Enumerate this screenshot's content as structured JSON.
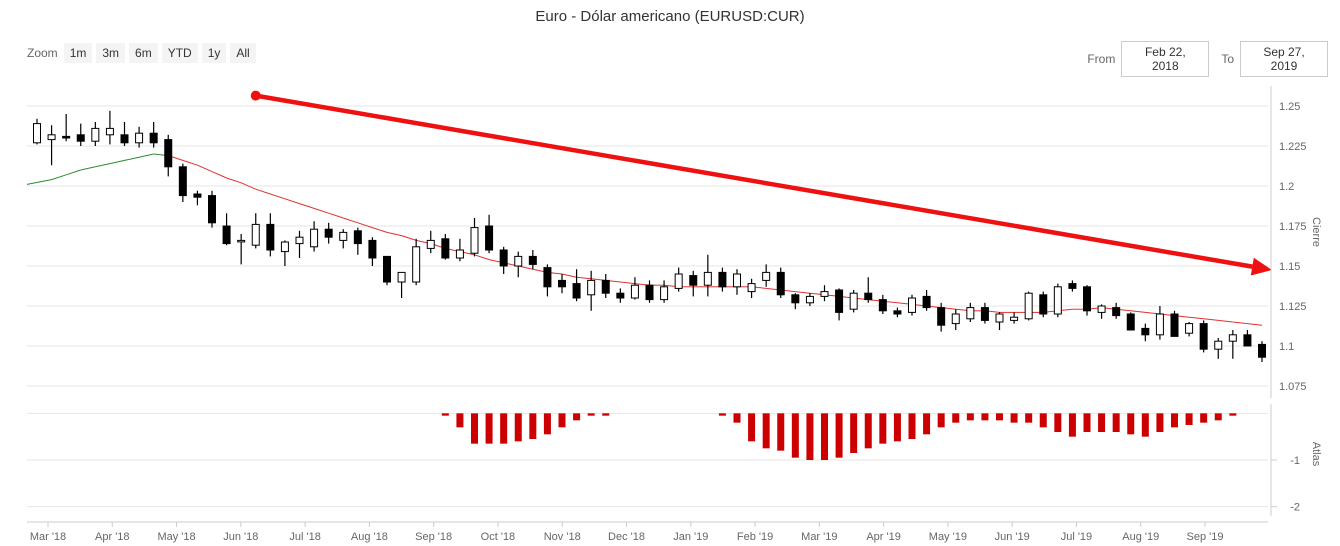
{
  "title": "Euro - Dólar americano (EURUSD:CUR)",
  "zoom": {
    "label": "Zoom",
    "buttons": [
      "1m",
      "3m",
      "6m",
      "YTD",
      "1y",
      "All"
    ]
  },
  "range": {
    "from_label": "From",
    "from_value": "Feb 22, 2018",
    "to_label": "To",
    "to_value": "Sep 27, 2019"
  },
  "colors": {
    "up_candle": "#ffffff",
    "down_candle": "#000000",
    "ma_above": "#2e8b2e",
    "ma_below": "#e03030",
    "histogram": "#cc0000",
    "trend_arrow": "#ee1111",
    "grid": "#e6e6e6"
  },
  "chart_data": {
    "type": "candlestick",
    "x_axis": {
      "ticks": [
        "Mar '18",
        "Apr '18",
        "May '18",
        "Jun '18",
        "Jul '18",
        "Aug '18",
        "Sep '18",
        "Oct '18",
        "Nov '18",
        "Dec '18",
        "Jan '19",
        "Feb '19",
        "Mar '19",
        "Apr '19",
        "May '19",
        "Jun '19",
        "Jul '19",
        "Aug '19",
        "Sep '19"
      ]
    },
    "price_panel": {
      "ylabel": "Cierre",
      "yticks": [
        "1.075",
        "1.1",
        "1.125",
        "1.15",
        "1.175",
        "1.2",
        "1.225",
        "1.25"
      ],
      "ylim": [
        1.0675,
        1.2625
      ],
      "grid": true,
      "candles": [
        {
          "o": 1.227,
          "h": 1.242,
          "l": 1.226,
          "c": 1.239
        },
        {
          "o": 1.229,
          "h": 1.238,
          "l": 1.213,
          "c": 1.232
        },
        {
          "o": 1.231,
          "h": 1.245,
          "l": 1.228,
          "c": 1.23
        },
        {
          "o": 1.232,
          "h": 1.239,
          "l": 1.225,
          "c": 1.228
        },
        {
          "o": 1.228,
          "h": 1.24,
          "l": 1.225,
          "c": 1.236
        },
        {
          "o": 1.232,
          "h": 1.247,
          "l": 1.226,
          "c": 1.236
        },
        {
          "o": 1.232,
          "h": 1.24,
          "l": 1.225,
          "c": 1.227
        },
        {
          "o": 1.227,
          "h": 1.237,
          "l": 1.224,
          "c": 1.233
        },
        {
          "o": 1.233,
          "h": 1.24,
          "l": 1.224,
          "c": 1.227
        },
        {
          "o": 1.229,
          "h": 1.232,
          "l": 1.206,
          "c": 1.212
        },
        {
          "o": 1.212,
          "h": 1.214,
          "l": 1.19,
          "c": 1.194
        },
        {
          "o": 1.195,
          "h": 1.197,
          "l": 1.188,
          "c": 1.193
        },
        {
          "o": 1.194,
          "h": 1.197,
          "l": 1.174,
          "c": 1.177
        },
        {
          "o": 1.175,
          "h": 1.183,
          "l": 1.163,
          "c": 1.164
        },
        {
          "o": 1.166,
          "h": 1.17,
          "l": 1.151,
          "c": 1.166
        },
        {
          "o": 1.163,
          "h": 1.183,
          "l": 1.161,
          "c": 1.176
        },
        {
          "o": 1.176,
          "h": 1.183,
          "l": 1.156,
          "c": 1.16
        },
        {
          "o": 1.159,
          "h": 1.166,
          "l": 1.15,
          "c": 1.165
        },
        {
          "o": 1.164,
          "h": 1.172,
          "l": 1.155,
          "c": 1.168
        },
        {
          "o": 1.162,
          "h": 1.178,
          "l": 1.159,
          "c": 1.173
        },
        {
          "o": 1.173,
          "h": 1.177,
          "l": 1.164,
          "c": 1.168
        },
        {
          "o": 1.166,
          "h": 1.173,
          "l": 1.161,
          "c": 1.171
        },
        {
          "o": 1.172,
          "h": 1.174,
          "l": 1.157,
          "c": 1.164
        },
        {
          "o": 1.166,
          "h": 1.168,
          "l": 1.15,
          "c": 1.155
        },
        {
          "o": 1.156,
          "h": 1.156,
          "l": 1.138,
          "c": 1.14
        },
        {
          "o": 1.14,
          "h": 1.146,
          "l": 1.13,
          "c": 1.146
        },
        {
          "o": 1.14,
          "h": 1.167,
          "l": 1.138,
          "c": 1.162
        },
        {
          "o": 1.161,
          "h": 1.172,
          "l": 1.158,
          "c": 1.166
        },
        {
          "o": 1.167,
          "h": 1.17,
          "l": 1.154,
          "c": 1.155
        },
        {
          "o": 1.155,
          "h": 1.167,
          "l": 1.153,
          "c": 1.16
        },
        {
          "o": 1.158,
          "h": 1.18,
          "l": 1.156,
          "c": 1.174
        },
        {
          "o": 1.175,
          "h": 1.182,
          "l": 1.158,
          "c": 1.16
        },
        {
          "o": 1.16,
          "h": 1.162,
          "l": 1.145,
          "c": 1.15
        },
        {
          "o": 1.15,
          "h": 1.159,
          "l": 1.143,
          "c": 1.156
        },
        {
          "o": 1.156,
          "h": 1.16,
          "l": 1.148,
          "c": 1.151
        },
        {
          "o": 1.149,
          "h": 1.151,
          "l": 1.131,
          "c": 1.137
        },
        {
          "o": 1.141,
          "h": 1.145,
          "l": 1.133,
          "c": 1.137
        },
        {
          "o": 1.139,
          "h": 1.148,
          "l": 1.128,
          "c": 1.13
        },
        {
          "o": 1.132,
          "h": 1.147,
          "l": 1.122,
          "c": 1.141
        },
        {
          "o": 1.141,
          "h": 1.145,
          "l": 1.13,
          "c": 1.133
        },
        {
          "o": 1.133,
          "h": 1.136,
          "l": 1.127,
          "c": 1.13
        },
        {
          "o": 1.13,
          "h": 1.143,
          "l": 1.129,
          "c": 1.138
        },
        {
          "o": 1.138,
          "h": 1.141,
          "l": 1.127,
          "c": 1.129
        },
        {
          "o": 1.129,
          "h": 1.141,
          "l": 1.127,
          "c": 1.137
        },
        {
          "o": 1.136,
          "h": 1.149,
          "l": 1.134,
          "c": 1.145
        },
        {
          "o": 1.144,
          "h": 1.147,
          "l": 1.131,
          "c": 1.138
        },
        {
          "o": 1.138,
          "h": 1.157,
          "l": 1.131,
          "c": 1.146
        },
        {
          "o": 1.146,
          "h": 1.149,
          "l": 1.134,
          "c": 1.137
        },
        {
          "o": 1.137,
          "h": 1.148,
          "l": 1.132,
          "c": 1.145
        },
        {
          "o": 1.134,
          "h": 1.142,
          "l": 1.13,
          "c": 1.139
        },
        {
          "o": 1.141,
          "h": 1.151,
          "l": 1.137,
          "c": 1.146
        },
        {
          "o": 1.146,
          "h": 1.149,
          "l": 1.13,
          "c": 1.132
        },
        {
          "o": 1.132,
          "h": 1.133,
          "l": 1.123,
          "c": 1.127
        },
        {
          "o": 1.127,
          "h": 1.133,
          "l": 1.125,
          "c": 1.131
        },
        {
          "o": 1.131,
          "h": 1.138,
          "l": 1.128,
          "c": 1.134
        },
        {
          "o": 1.135,
          "h": 1.136,
          "l": 1.116,
          "c": 1.121
        },
        {
          "o": 1.123,
          "h": 1.135,
          "l": 1.121,
          "c": 1.133
        },
        {
          "o": 1.133,
          "h": 1.143,
          "l": 1.127,
          "c": 1.129
        },
        {
          "o": 1.129,
          "h": 1.132,
          "l": 1.12,
          "c": 1.122
        },
        {
          "o": 1.122,
          "h": 1.124,
          "l": 1.118,
          "c": 1.12
        },
        {
          "o": 1.121,
          "h": 1.132,
          "l": 1.119,
          "c": 1.13
        },
        {
          "o": 1.131,
          "h": 1.135,
          "l": 1.122,
          "c": 1.124
        },
        {
          "o": 1.124,
          "h": 1.127,
          "l": 1.109,
          "c": 1.113
        },
        {
          "o": 1.114,
          "h": 1.123,
          "l": 1.11,
          "c": 1.12
        },
        {
          "o": 1.117,
          "h": 1.127,
          "l": 1.115,
          "c": 1.124
        },
        {
          "o": 1.124,
          "h": 1.127,
          "l": 1.114,
          "c": 1.116
        },
        {
          "o": 1.115,
          "h": 1.121,
          "l": 1.11,
          "c": 1.12
        },
        {
          "o": 1.116,
          "h": 1.121,
          "l": 1.114,
          "c": 1.118
        },
        {
          "o": 1.117,
          "h": 1.134,
          "l": 1.116,
          "c": 1.133
        },
        {
          "o": 1.132,
          "h": 1.134,
          "l": 1.118,
          "c": 1.12
        },
        {
          "o": 1.12,
          "h": 1.139,
          "l": 1.118,
          "c": 1.137
        },
        {
          "o": 1.139,
          "h": 1.141,
          "l": 1.134,
          "c": 1.136
        },
        {
          "o": 1.137,
          "h": 1.138,
          "l": 1.119,
          "c": 1.122
        },
        {
          "o": 1.121,
          "h": 1.126,
          "l": 1.117,
          "c": 1.125
        },
        {
          "o": 1.124,
          "h": 1.127,
          "l": 1.117,
          "c": 1.119
        },
        {
          "o": 1.12,
          "h": 1.121,
          "l": 1.11,
          "c": 1.11
        },
        {
          "o": 1.111,
          "h": 1.114,
          "l": 1.103,
          "c": 1.107
        },
        {
          "o": 1.107,
          "h": 1.125,
          "l": 1.104,
          "c": 1.12
        },
        {
          "o": 1.12,
          "h": 1.122,
          "l": 1.106,
          "c": 1.106
        },
        {
          "o": 1.108,
          "h": 1.115,
          "l": 1.106,
          "c": 1.114
        },
        {
          "o": 1.114,
          "h": 1.116,
          "l": 1.096,
          "c": 1.098
        },
        {
          "o": 1.098,
          "h": 1.105,
          "l": 1.092,
          "c": 1.103
        },
        {
          "o": 1.103,
          "h": 1.11,
          "l": 1.092,
          "c": 1.107
        },
        {
          "o": 1.107,
          "h": 1.11,
          "l": 1.1,
          "c": 1.1
        },
        {
          "o": 1.101,
          "h": 1.103,
          "l": 1.09,
          "c": 1.093
        }
      ]
    },
    "moving_average": {
      "name": "",
      "values": [
        1.201,
        1.204,
        1.207,
        1.21,
        1.212,
        1.214,
        1.216,
        1.218,
        1.22,
        1.219,
        1.216,
        1.213,
        1.209,
        1.205,
        1.202,
        1.198,
        1.195,
        1.192,
        1.189,
        1.186,
        1.183,
        1.18,
        1.177,
        1.174,
        1.171,
        1.169,
        1.166,
        1.164,
        1.161,
        1.159,
        1.157,
        1.154,
        1.152,
        1.15,
        1.148,
        1.146,
        1.145,
        1.143,
        1.142,
        1.141,
        1.14,
        1.139,
        1.138,
        1.138,
        1.137,
        1.137,
        1.137,
        1.137,
        1.137,
        1.137,
        1.136,
        1.135,
        1.134,
        1.133,
        1.132,
        1.131,
        1.13,
        1.129,
        1.128,
        1.127,
        1.126,
        1.125,
        1.124,
        1.123,
        1.122,
        1.122,
        1.121,
        1.121,
        1.121,
        1.121,
        1.122,
        1.123,
        1.123,
        1.124,
        1.123,
        1.122,
        1.121,
        1.12,
        1.119,
        1.118,
        1.117,
        1.116,
        1.115,
        1.114,
        1.113
      ]
    },
    "trend_arrow": {
      "start": {
        "candle_index": 15,
        "value": 1.2565
      },
      "end": {
        "candle_index": 84,
        "value": 1.1475
      }
    },
    "indicator_panel": {
      "ylabel": "Atlas",
      "yticks": [
        "-1",
        "-2"
      ],
      "ylim": [
        -2.2,
        0.2
      ],
      "values": [
        0,
        0,
        0,
        0,
        0,
        0,
        0,
        0,
        0,
        0,
        0,
        0,
        0,
        0,
        0,
        0,
        0,
        0,
        0,
        0,
        0,
        0,
        0,
        0,
        0,
        0,
        0,
        0,
        -0.05,
        -0.3,
        -0.65,
        -0.65,
        -0.65,
        -0.6,
        -0.55,
        -0.45,
        -0.3,
        -0.15,
        -0.05,
        -0.05,
        0,
        0,
        0,
        0,
        0,
        0,
        0,
        -0.05,
        -0.2,
        -0.6,
        -0.75,
        -0.8,
        -0.95,
        -1.0,
        -1.0,
        -0.95,
        -0.85,
        -0.75,
        -0.65,
        -0.6,
        -0.55,
        -0.45,
        -0.3,
        -0.2,
        -0.15,
        -0.15,
        -0.15,
        -0.2,
        -0.2,
        -0.3,
        -0.4,
        -0.5,
        -0.4,
        -0.4,
        -0.4,
        -0.45,
        -0.5,
        -0.4,
        -0.3,
        -0.25,
        -0.2,
        -0.15,
        -0.05,
        0,
        0
      ]
    }
  }
}
